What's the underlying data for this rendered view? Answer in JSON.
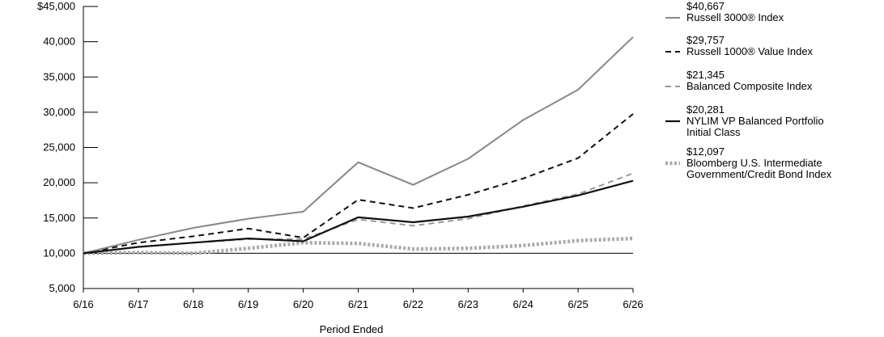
{
  "chart_data": {
    "type": "line",
    "xlabel": "Period Ended",
    "ylabel": "",
    "x": [
      "6/16",
      "6/17",
      "6/18",
      "6/19",
      "6/20",
      "6/21",
      "6/22",
      "6/23",
      "6/24",
      "6/25",
      "6/26"
    ],
    "ylim": [
      5000,
      45000
    ],
    "yticks": [
      "5,000",
      "10,000",
      "15,000",
      "20,000",
      "25,000",
      "30,000",
      "35,000",
      "40,000",
      "$45,000"
    ],
    "grid": false,
    "legend_position": "right",
    "series": [
      {
        "name_lines": [
          "Russell 3000® Index"
        ],
        "final_label": "$40,667",
        "color": "#888888",
        "style": "solid",
        "values": [
          10000,
          11900,
          13600,
          14900,
          15900,
          22900,
          19700,
          23400,
          28900,
          33200,
          40667
        ]
      },
      {
        "name_lines": [
          "Russell 1000® Value Index"
        ],
        "final_label": "$29,757",
        "color": "#111111",
        "style": "dash",
        "values": [
          10000,
          11500,
          12400,
          13500,
          12200,
          17600,
          16400,
          18300,
          20600,
          23500,
          29757
        ]
      },
      {
        "name_lines": [
          "Balanced Composite Index"
        ],
        "final_label": "$21,345",
        "color": "#999999",
        "style": "dash",
        "values": [
          10000,
          10900,
          11500,
          12000,
          12000,
          14800,
          13900,
          14900,
          16700,
          18400,
          21345
        ]
      },
      {
        "name_lines": [
          "NYLIM VP Balanced Portfolio",
          "Initial Class"
        ],
        "final_label": "$20,281",
        "color": "#111111",
        "style": "solid-thick",
        "values": [
          10000,
          10900,
          11500,
          12100,
          11700,
          15100,
          14400,
          15200,
          16600,
          18200,
          20281
        ]
      },
      {
        "name_lines": [
          "Bloomberg U.S. Intermediate",
          "Government/Credit Bond Index"
        ],
        "final_label": "$12,097",
        "color": "#aaaaaa",
        "style": "dotted-thick",
        "values": [
          10000,
          10100,
          10000,
          10700,
          11500,
          11400,
          10600,
          10700,
          11100,
          11800,
          12097
        ]
      }
    ]
  }
}
